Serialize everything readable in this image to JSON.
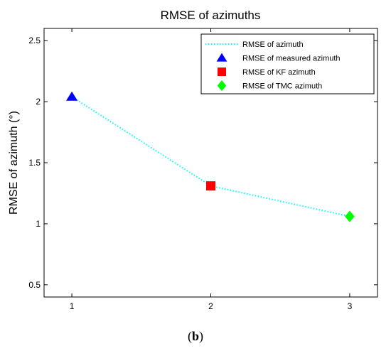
{
  "chart_data": {
    "type": "line",
    "title": "RMSE of azimuths",
    "xlabel": "",
    "ylabel": "RMSE of azimuth (°)",
    "x": [
      1,
      2,
      3
    ],
    "xlim": [
      0.8,
      3.2
    ],
    "ylim": [
      0.4,
      2.6
    ],
    "xticks": [
      1,
      2,
      3
    ],
    "yticks": [
      0.5,
      1,
      1.5,
      2,
      2.5
    ],
    "ytick_labels": [
      "0.5",
      "1",
      "1.5",
      "2",
      "2.5"
    ],
    "grid": false,
    "legend_position": "top-right",
    "line": {
      "name": "RMSE of azimuth",
      "color": "#00FFFF",
      "style": "dotted",
      "values": [
        2.04,
        1.31,
        1.06
      ]
    },
    "markers": [
      {
        "name": "RMSE of measured azimuth",
        "x": 1,
        "y": 2.04,
        "shape": "triangle",
        "color": "#0000FF"
      },
      {
        "name": "RMSE of KF azimuth",
        "x": 2,
        "y": 1.31,
        "shape": "square",
        "color": "#FF0000"
      },
      {
        "name": "RMSE of TMC azimuth",
        "x": 3,
        "y": 1.06,
        "shape": "diamond",
        "color": "#00FF00"
      }
    ]
  },
  "caption": {
    "open": "(",
    "label": "b",
    "close": ")"
  }
}
